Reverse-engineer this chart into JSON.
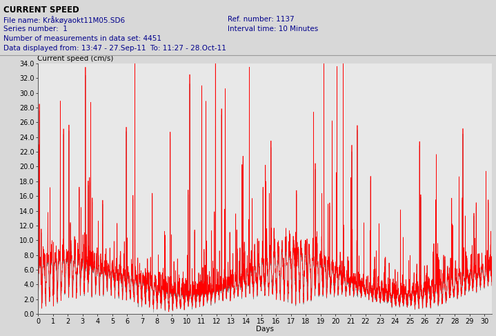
{
  "title": "CURRENT SPEED",
  "meta_line1_left": "File name: Kråkøyaokt11M05.SD6",
  "meta_line1_right": "Ref. number: 1137",
  "meta_line2_left": "Series number:  1",
  "meta_line2_right": "Interval time: 10 Minutes",
  "meta_line3": "Number of measurements in data set: 4451",
  "meta_line4": "Data displayed from: 13:47 - 27.Sep-11  To: 11:27 - 28.Oct-11",
  "ylabel": "Current speed (cm/s)",
  "xlabel": "Days",
  "xlim": [
    0,
    30.5
  ],
  "ylim": [
    0,
    34.0
  ],
  "yticks": [
    0.0,
    2.0,
    4.0,
    6.0,
    8.0,
    10.0,
    12.0,
    14.0,
    16.0,
    18.0,
    20.0,
    22.0,
    24.0,
    26.0,
    28.0,
    30.0,
    32.0,
    34.0
  ],
  "xticks": [
    0,
    1,
    2,
    3,
    4,
    5,
    6,
    7,
    8,
    9,
    10,
    11,
    12,
    13,
    14,
    15,
    16,
    17,
    18,
    19,
    20,
    21,
    22,
    23,
    24,
    25,
    26,
    27,
    28,
    29,
    30
  ],
  "line_color": "#FF0000",
  "thin_line_color": "#333333",
  "bg_color": "#d8d8d8",
  "plot_bg_color": "#e8e8e8",
  "n_points": 4451,
  "seed": 42,
  "title_color": "#000000",
  "meta_color": "#00008B",
  "title_fontsize": 8.5,
  "meta_fontsize": 7.5,
  "tick_fontsize": 7,
  "axis_label_fontsize": 7.5
}
